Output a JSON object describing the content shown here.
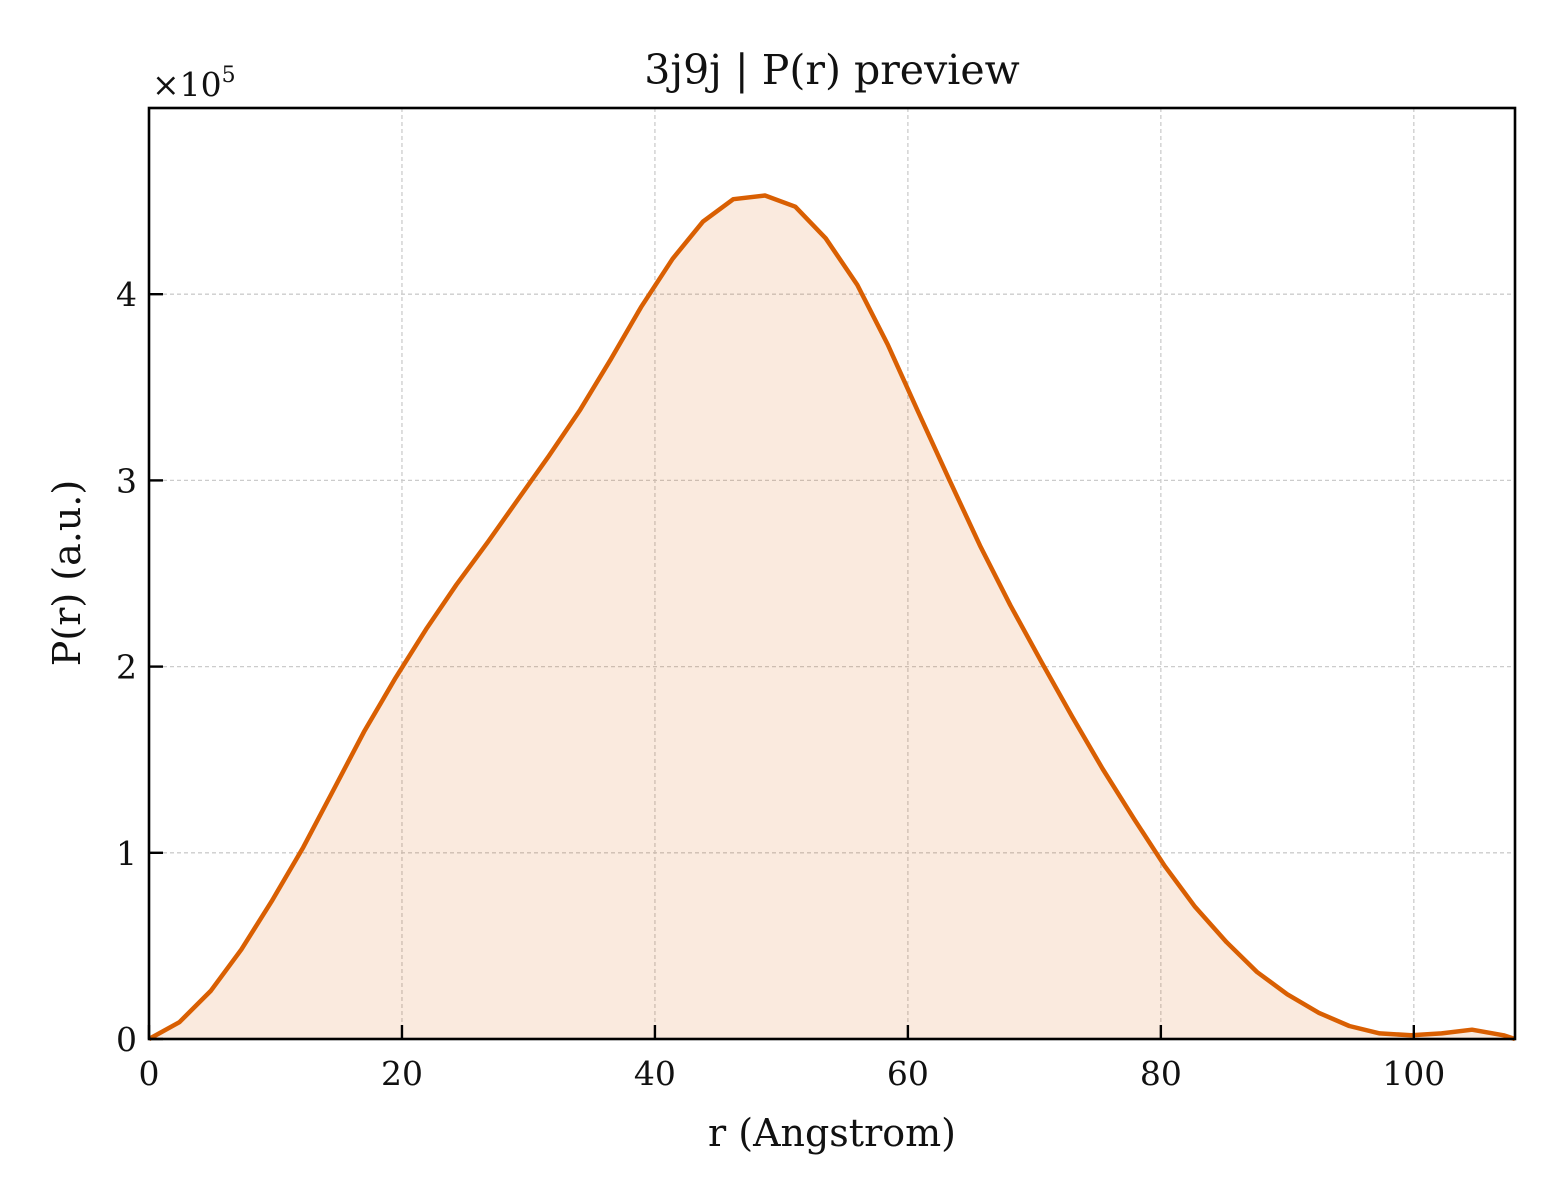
{
  "chart_data": {
    "type": "area",
    "title": "3j9j | P(r) preview",
    "xlabel": "r (Angstrom)",
    "ylabel": "P(r) (a.u.)",
    "y_multiplier": "×10",
    "y_multiplier_exp": "5",
    "xlim": [
      0,
      108
    ],
    "ylim": [
      0,
      5.0
    ],
    "x_ticks": [
      0,
      20,
      40,
      60,
      80,
      100
    ],
    "y_ticks": [
      0,
      1,
      2,
      3,
      4
    ],
    "x_tick_labels": [
      "0",
      "20",
      "40",
      "60",
      "80",
      "100"
    ],
    "y_tick_labels": [
      "0",
      "1",
      "2",
      "3",
      "4"
    ],
    "grid": true,
    "legend": "none",
    "colors": {
      "line": "#d95f02",
      "fill": "#d95f02",
      "grid": "#cccccc",
      "frame": "#000000"
    },
    "series": [
      {
        "x": [
          0,
          2.4,
          4.9,
          7.3,
          9.7,
          12.2,
          14.6,
          17.0,
          19.5,
          21.9,
          24.3,
          26.8,
          29.2,
          31.6,
          34.1,
          36.5,
          38.9,
          41.4,
          43.8,
          46.2,
          48.7,
          51.1,
          53.5,
          56.0,
          58.4,
          60.8,
          63.3,
          65.7,
          68.1,
          70.6,
          73.0,
          75.4,
          77.9,
          80.3,
          82.7,
          85.2,
          87.6,
          90.0,
          92.5,
          94.9,
          97.3,
          99.8,
          102.2,
          104.6,
          107.1,
          108
        ],
        "y": [
          0.0,
          0.09,
          0.26,
          0.48,
          0.74,
          1.03,
          1.34,
          1.65,
          1.94,
          2.2,
          2.44,
          2.67,
          2.9,
          3.13,
          3.38,
          3.65,
          3.93,
          4.19,
          4.39,
          4.51,
          4.53,
          4.47,
          4.3,
          4.05,
          3.73,
          3.37,
          3.0,
          2.65,
          2.33,
          2.02,
          1.73,
          1.45,
          1.18,
          0.93,
          0.71,
          0.52,
          0.36,
          0.24,
          0.14,
          0.07,
          0.03,
          0.02,
          0.03,
          0.05,
          0.02,
          0.0
        ]
      }
    ]
  }
}
